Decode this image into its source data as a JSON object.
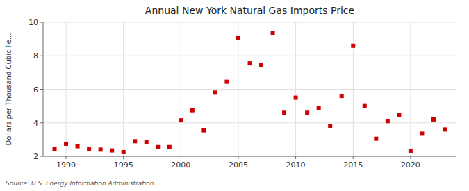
{
  "chart_data": {
    "type": "scatter",
    "title": "Annual New York Natural Gas Imports Price",
    "ylabel": "Dollars per Thousand Cubic Fe...",
    "source": "Source: U.S. Energy Information Administration",
    "x": [
      1989,
      1990,
      1991,
      1992,
      1993,
      1994,
      1995,
      1996,
      1997,
      1998,
      1999,
      2000,
      2001,
      2002,
      2003,
      2004,
      2005,
      2006,
      2007,
      2008,
      2009,
      2010,
      2011,
      2012,
      2013,
      2014,
      2015,
      2016,
      2017,
      2018,
      2019,
      2020,
      2021,
      2022,
      2023
    ],
    "values": [
      2.45,
      2.75,
      2.6,
      2.45,
      2.4,
      2.35,
      2.25,
      2.9,
      2.85,
      2.55,
      2.55,
      4.15,
      4.75,
      3.55,
      5.8,
      6.45,
      9.05,
      7.55,
      7.45,
      9.35,
      4.6,
      5.5,
      4.6,
      4.9,
      3.8,
      5.6,
      8.6,
      5.0,
      3.05,
      4.1,
      4.45,
      2.3,
      3.35,
      4.2,
      3.6
    ],
    "color": "#cc0000",
    "marker": "square",
    "xlim": [
      1988,
      2024
    ],
    "ylim": [
      2,
      10
    ],
    "xticks": [
      1990,
      1995,
      2000,
      2005,
      2010,
      2015,
      2020
    ],
    "yticks": [
      2,
      4,
      6,
      8,
      10
    ],
    "grid": true
  }
}
